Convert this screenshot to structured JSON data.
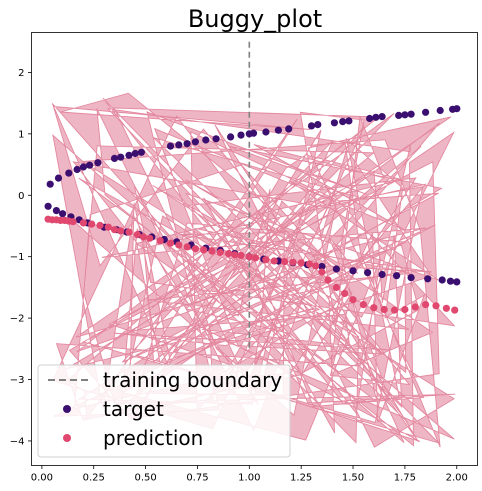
{
  "chart_data": {
    "type": "scatter",
    "title": "Buggy_plot",
    "xlabel": "",
    "ylabel": "",
    "xlim": [
      -0.05,
      2.1
    ],
    "ylim": [
      -4.4,
      2.65
    ],
    "xticks": [
      0.0,
      0.25,
      0.5,
      0.75,
      1.0,
      1.25,
      1.5,
      1.75,
      2.0
    ],
    "xtick_labels": [
      "0.00",
      "0.25",
      "0.50",
      "0.75",
      "1.00",
      "1.25",
      "1.50",
      "1.75",
      "2.00"
    ],
    "yticks": [
      2,
      1,
      0,
      -1,
      -2,
      -3,
      -4
    ],
    "ytick_labels": [
      "2",
      "1",
      "0",
      "−1",
      "−2",
      "−3",
      "−4"
    ],
    "grid": false,
    "legend": "lower-left",
    "boundary": {
      "name": "training boundary",
      "x": 1.0,
      "y_range": [
        -2.5,
        2.5
      ],
      "color": "#808080"
    },
    "series": [
      {
        "name": "target",
        "color": "#3b0f70",
        "points": [
          [
            0.04,
            0.18
          ],
          [
            0.08,
            0.28
          ],
          [
            0.13,
            0.36
          ],
          [
            0.17,
            0.42
          ],
          [
            0.2,
            0.46
          ],
          [
            0.23,
            0.49
          ],
          [
            0.27,
            0.53
          ],
          [
            0.35,
            0.6
          ],
          [
            0.38,
            0.62
          ],
          [
            0.42,
            0.65
          ],
          [
            0.45,
            0.68
          ],
          [
            0.48,
            0.7
          ],
          [
            0.62,
            0.8
          ],
          [
            0.66,
            0.82
          ],
          [
            0.7,
            0.84
          ],
          [
            0.74,
            0.87
          ],
          [
            0.79,
            0.9
          ],
          [
            0.84,
            0.92
          ],
          [
            0.91,
            0.95
          ],
          [
            0.96,
            0.98
          ],
          [
            1.0,
            1.0
          ],
          [
            1.02,
            1.01
          ],
          [
            1.08,
            1.03
          ],
          [
            1.14,
            1.06
          ],
          [
            1.19,
            1.08
          ],
          [
            1.3,
            1.13
          ],
          [
            1.33,
            1.15
          ],
          [
            1.41,
            1.18
          ],
          [
            1.45,
            1.2
          ],
          [
            1.48,
            1.21
          ],
          [
            1.58,
            1.25
          ],
          [
            1.61,
            1.27
          ],
          [
            1.64,
            1.28
          ],
          [
            1.72,
            1.3
          ],
          [
            1.75,
            1.31
          ],
          [
            1.78,
            1.32
          ],
          [
            1.85,
            1.35
          ],
          [
            1.92,
            1.38
          ],
          [
            1.98,
            1.4
          ],
          [
            2.0,
            1.41
          ],
          [
            0.03,
            -0.18
          ],
          [
            0.07,
            -0.25
          ],
          [
            0.1,
            -0.3
          ],
          [
            0.14,
            -0.35
          ],
          [
            0.18,
            -0.4
          ],
          [
            0.22,
            -0.45
          ],
          [
            0.3,
            -0.52
          ],
          [
            0.36,
            -0.56
          ],
          [
            0.41,
            -0.6
          ],
          [
            0.47,
            -0.64
          ],
          [
            0.53,
            -0.68
          ],
          [
            0.59,
            -0.72
          ],
          [
            0.65,
            -0.76
          ],
          [
            0.72,
            -0.81
          ],
          [
            0.79,
            -0.86
          ],
          [
            0.86,
            -0.9
          ],
          [
            0.93,
            -0.95
          ],
          [
            1.0,
            -1.0
          ],
          [
            1.07,
            -1.04
          ],
          [
            1.14,
            -1.07
          ],
          [
            1.21,
            -1.1
          ],
          [
            1.28,
            -1.13
          ],
          [
            1.35,
            -1.16
          ],
          [
            1.42,
            -1.2
          ],
          [
            1.5,
            -1.23
          ],
          [
            1.57,
            -1.26
          ],
          [
            1.64,
            -1.29
          ],
          [
            1.71,
            -1.31
          ],
          [
            1.78,
            -1.34
          ],
          [
            1.86,
            -1.36
          ],
          [
            1.93,
            -1.38
          ],
          [
            1.97,
            -1.4
          ],
          [
            2.0,
            -1.41
          ]
        ]
      },
      {
        "name": "prediction",
        "color": "#e0486f",
        "points": [
          [
            0.03,
            -0.39
          ],
          [
            0.05,
            -0.4
          ],
          [
            0.07,
            -0.4
          ],
          [
            0.09,
            -0.41
          ],
          [
            0.11,
            -0.41
          ],
          [
            0.13,
            -0.42
          ],
          [
            0.15,
            -0.43
          ],
          [
            0.2,
            -0.45
          ],
          [
            0.24,
            -0.47
          ],
          [
            0.28,
            -0.49
          ],
          [
            0.32,
            -0.52
          ],
          [
            0.35,
            -0.56
          ],
          [
            0.38,
            -0.58
          ],
          [
            0.42,
            -0.6
          ],
          [
            0.46,
            -0.64
          ],
          [
            0.49,
            -0.68
          ],
          [
            0.52,
            -0.7
          ],
          [
            0.57,
            -0.74
          ],
          [
            0.62,
            -0.78
          ],
          [
            0.66,
            -0.81
          ],
          [
            0.7,
            -0.84
          ],
          [
            0.74,
            -0.87
          ],
          [
            0.78,
            -0.89
          ],
          [
            0.82,
            -0.91
          ],
          [
            0.86,
            -0.93
          ],
          [
            0.9,
            -0.95
          ],
          [
            0.93,
            -0.97
          ],
          [
            0.96,
            -0.98
          ],
          [
            1.0,
            -1.0
          ],
          [
            1.03,
            -1.02
          ],
          [
            1.08,
            -1.05
          ],
          [
            1.12,
            -1.07
          ],
          [
            1.17,
            -1.08
          ],
          [
            1.21,
            -1.09
          ],
          [
            1.25,
            -1.1
          ],
          [
            1.29,
            -1.12
          ],
          [
            1.32,
            -1.15
          ],
          [
            1.35,
            -1.25
          ],
          [
            1.38,
            -1.38
          ],
          [
            1.42,
            -1.5
          ],
          [
            1.46,
            -1.6
          ],
          [
            1.5,
            -1.7
          ],
          [
            1.55,
            -1.78
          ],
          [
            1.6,
            -1.83
          ],
          [
            1.65,
            -1.86
          ],
          [
            1.7,
            -1.87
          ],
          [
            1.75,
            -1.86
          ],
          [
            1.8,
            -1.82
          ],
          [
            1.85,
            -1.78
          ],
          [
            1.9,
            -1.8
          ],
          [
            1.95,
            -1.84
          ],
          [
            1.99,
            -1.87
          ]
        ]
      }
    ],
    "fill_color": "#e07a94"
  }
}
